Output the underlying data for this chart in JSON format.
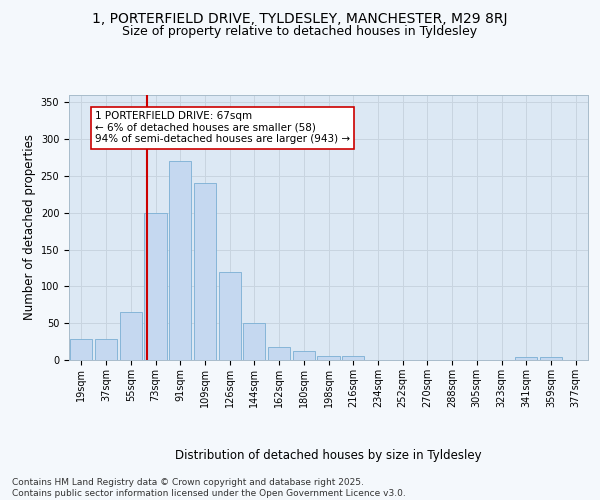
{
  "title_line1": "1, PORTERFIELD DRIVE, TYLDESLEY, MANCHESTER, M29 8RJ",
  "title_line2": "Size of property relative to detached houses in Tyldesley",
  "xlabel": "Distribution of detached houses by size in Tyldesley",
  "ylabel": "Number of detached properties",
  "categories": [
    "19sqm",
    "37sqm",
    "55sqm",
    "73sqm",
    "91sqm",
    "109sqm",
    "126sqm",
    "144sqm",
    "162sqm",
    "180sqm",
    "198sqm",
    "216sqm",
    "234sqm",
    "252sqm",
    "270sqm",
    "288sqm",
    "305sqm",
    "323sqm",
    "341sqm",
    "359sqm",
    "377sqm"
  ],
  "values": [
    28,
    28,
    65,
    200,
    270,
    240,
    120,
    50,
    18,
    12,
    5,
    5,
    0,
    0,
    0,
    0,
    0,
    0,
    4,
    4,
    0
  ],
  "bar_color": "#c5d8f0",
  "bar_edge_color": "#7aafd4",
  "vline_color": "#cc0000",
  "vline_pos": 2.65,
  "annotation_text": "1 PORTERFIELD DRIVE: 67sqm\n← 6% of detached houses are smaller (58)\n94% of semi-detached houses are larger (943) →",
  "annotation_box_color": "#ffffff",
  "annotation_box_edge_color": "#cc0000",
  "ylim": [
    0,
    360
  ],
  "yticks": [
    0,
    50,
    100,
    150,
    200,
    250,
    300,
    350
  ],
  "grid_color": "#c8d4e0",
  "background_color": "#dce8f4",
  "fig_background_color": "#f4f8fc",
  "footer_text": "Contains HM Land Registry data © Crown copyright and database right 2025.\nContains public sector information licensed under the Open Government Licence v3.0.",
  "title_fontsize": 10,
  "subtitle_fontsize": 9,
  "tick_fontsize": 7,
  "label_fontsize": 8.5,
  "annotation_fontsize": 7.5,
  "footer_fontsize": 6.5
}
